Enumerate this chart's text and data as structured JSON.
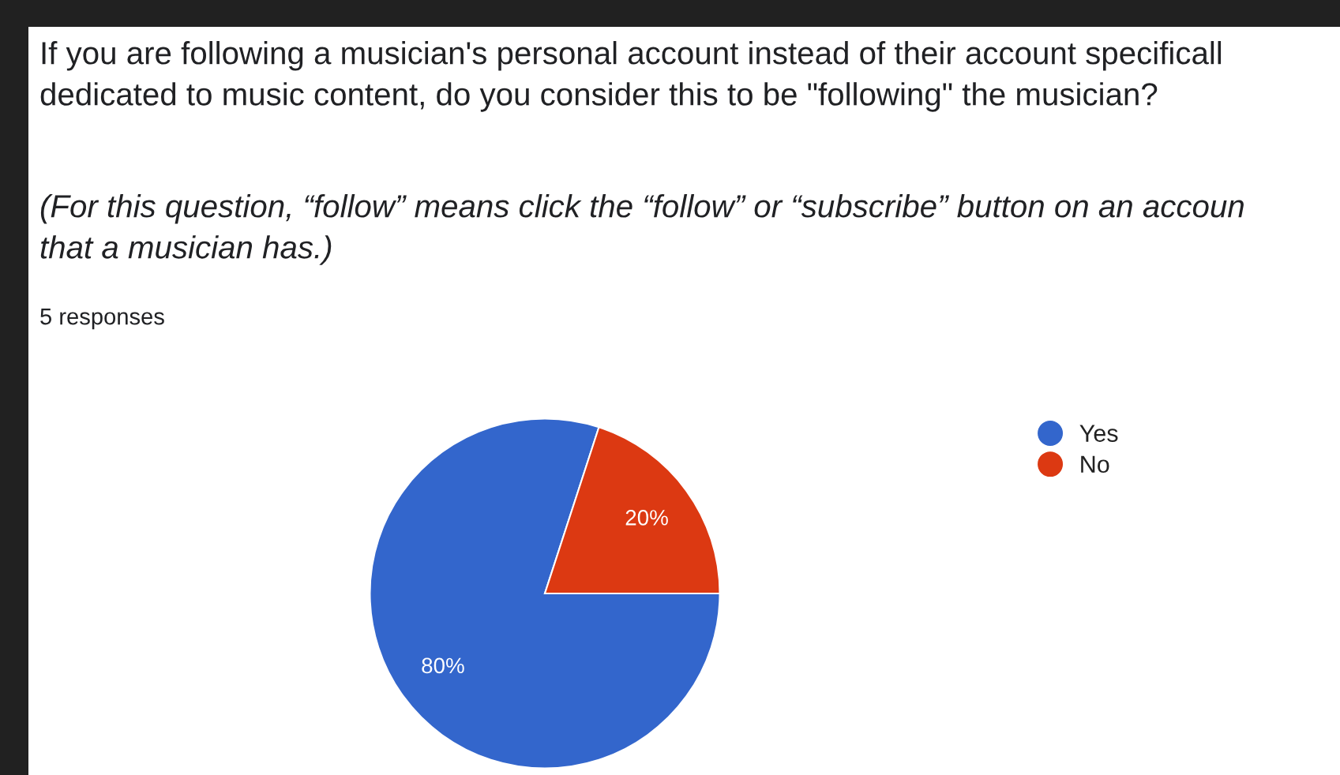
{
  "chart_data": {
    "type": "pie",
    "title": "If you are following a musician's personal account instead of their account specificall\ndedicated to music content, do you consider this to be \"following\" the musician?",
    "subtitle": "(For this question, “follow” means click the “follow” or “subscribe” button on an accoun\nthat a musician has.)",
    "annotations": [
      "5 responses"
    ],
    "categories": [
      "Yes",
      "No"
    ],
    "values": [
      80,
      20
    ],
    "colors": [
      "#3366cc",
      "#dc3912"
    ],
    "value_labels": [
      "80%",
      "20%"
    ],
    "legend": "right"
  }
}
